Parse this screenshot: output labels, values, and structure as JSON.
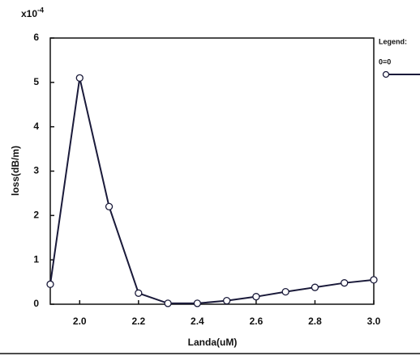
{
  "chart_data": {
    "type": "line",
    "x_label": "Landa(uM)",
    "y_label": "loss(dB/m)",
    "y_multiplier": {
      "base": "x10",
      "exponent": "-4"
    },
    "legend_title": "Legend:",
    "legend": "right",
    "x": [
      1.9,
      2.0,
      2.1,
      2.2,
      2.3,
      2.4,
      2.5,
      2.6,
      2.7,
      2.8,
      2.9,
      3.0
    ],
    "series": [
      {
        "name": "0=0",
        "color": "#1a1a3a",
        "marker": "circle",
        "values": [
          0.45,
          5.1,
          2.2,
          0.25,
          0.02,
          0.02,
          0.08,
          0.17,
          0.28,
          0.38,
          0.48,
          0.55
        ]
      }
    ],
    "xlim": [
      1.9,
      3.0
    ],
    "ylim": [
      0,
      6
    ],
    "xticks": [
      {
        "value": 2.0,
        "label": "2.0"
      },
      {
        "value": 2.2,
        "label": "2.2"
      },
      {
        "value": 2.4,
        "label": "2.4"
      },
      {
        "value": 2.6,
        "label": "2.6"
      },
      {
        "value": 2.8,
        "label": "2.8"
      },
      {
        "value": 3.0,
        "label": "3.0"
      }
    ],
    "yticks": [
      0,
      1,
      2,
      3,
      4,
      5,
      6
    ]
  }
}
